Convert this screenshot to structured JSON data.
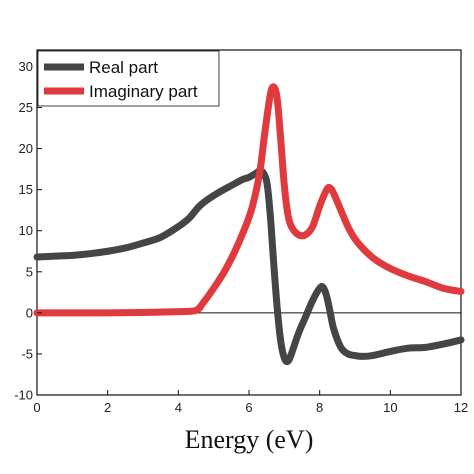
{
  "chart_data": {
    "type": "line",
    "xlabel": "Energy (eV)",
    "ylabel": "",
    "xlim": [
      0,
      12
    ],
    "ylim": [
      -10,
      32
    ],
    "xticks": [
      0,
      2,
      4,
      6,
      8,
      10,
      12
    ],
    "yticks": [
      -10,
      -5,
      0,
      5,
      10,
      15,
      20,
      25,
      30
    ],
    "grid": false,
    "legend_position": "top-left",
    "zero_line": true,
    "series": [
      {
        "name": "Real part",
        "color": "#454545",
        "x": [
          0,
          0.5,
          1,
          1.5,
          2,
          2.5,
          3,
          3.5,
          4,
          4.3,
          4.6,
          4.9,
          5.2,
          5.5,
          5.8,
          6.0,
          6.2,
          6.35,
          6.5,
          6.6,
          6.7,
          6.8,
          6.9,
          7.0,
          7.1,
          7.2,
          7.4,
          7.6,
          7.8,
          8.0,
          8.1,
          8.2,
          8.3,
          8.4,
          8.6,
          8.8,
          9.0,
          9.2,
          9.5,
          10.0,
          10.5,
          11.0,
          11.5,
          12.0
        ],
        "values": [
          6.8,
          6.9,
          7.0,
          7.2,
          7.5,
          7.9,
          8.5,
          9.2,
          10.5,
          11.5,
          13.0,
          14.0,
          14.8,
          15.5,
          16.2,
          16.5,
          17.0,
          17.3,
          16.0,
          12.0,
          6.0,
          0.5,
          -3.5,
          -5.5,
          -5.9,
          -5.0,
          -2.5,
          -0.5,
          1.5,
          3.0,
          3.1,
          2.0,
          0.0,
          -2.0,
          -4.2,
          -5.0,
          -5.2,
          -5.3,
          -5.2,
          -4.7,
          -4.3,
          -4.2,
          -3.8,
          -3.3
        ]
      },
      {
        "name": "Imaginary part",
        "color": "#e03a3e",
        "x": [
          0,
          1,
          2,
          3,
          4,
          4.5,
          4.7,
          5.0,
          5.3,
          5.6,
          5.9,
          6.1,
          6.3,
          6.45,
          6.6,
          6.7,
          6.8,
          6.9,
          7.0,
          7.1,
          7.2,
          7.4,
          7.6,
          7.8,
          8.0,
          8.2,
          8.3,
          8.4,
          8.6,
          8.8,
          9.0,
          9.3,
          9.6,
          10.0,
          10.5,
          11.0,
          11.5,
          12.0
        ],
        "values": [
          0,
          0,
          0,
          0.05,
          0.15,
          0.3,
          1.2,
          3.0,
          5.0,
          7.5,
          10.5,
          13.0,
          17.0,
          22.0,
          26.5,
          27.5,
          26.0,
          21.0,
          15.5,
          12.0,
          10.5,
          9.5,
          9.5,
          10.5,
          13.0,
          15.0,
          15.2,
          14.5,
          12.5,
          10.5,
          9.0,
          7.5,
          6.4,
          5.4,
          4.5,
          3.8,
          3.0,
          2.6
        ]
      }
    ]
  }
}
